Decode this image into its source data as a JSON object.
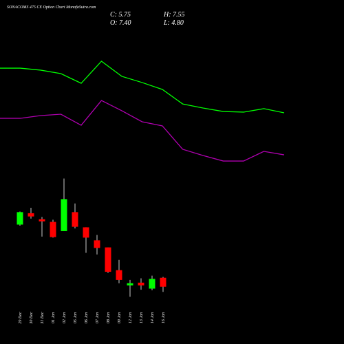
{
  "chart_data": [
    {
      "type": "candlestick",
      "title": "SONACOMS 475 CE Option Chart MunafaSutra.com",
      "ohlc_labels": [
        "C: 5.75",
        "H: 7.55",
        "O: 7.40",
        "L: 4.80"
      ],
      "categories": [
        "29 Dec",
        "30 Dec",
        "31 Dec",
        "01 Jan",
        "02 Jan",
        "05 Jan",
        "06 Jan",
        "07 Jan",
        "08 Jan",
        "09 Jan",
        "12 Jan",
        "13 Jan",
        "14 Jan",
        "16 Jan"
      ],
      "open": [
        17.2,
        19.3,
        18.2,
        17.7,
        16.0,
        19.5,
        16.7,
        14.3,
        13.0,
        8.8,
        6.0,
        6.5,
        5.4,
        7.4
      ],
      "high": [
        19.6,
        20.3,
        18.6,
        18.1,
        25.7,
        21.1,
        16.7,
        15.3,
        13.0,
        10.7,
        7.0,
        7.3,
        7.8,
        7.55
      ],
      "low": [
        17.0,
        18.3,
        15.0,
        14.8,
        16.0,
        16.5,
        12.0,
        11.7,
        8.3,
        6.4,
        3.9,
        5.2,
        5.1,
        4.8
      ],
      "close": [
        19.5,
        18.7,
        17.8,
        14.9,
        21.9,
        16.8,
        14.8,
        12.9,
        8.5,
        7.0,
        6.4,
        6.0,
        7.2,
        5.75
      ],
      "up_color": "#00ff00",
      "down_color": "#ff0000",
      "wick_color": "#cccccc",
      "ylim": [
        2.8,
        26.9
      ]
    },
    {
      "type": "line",
      "categories": [
        null,
        null,
        null,
        null,
        null,
        null,
        null,
        null,
        null,
        null,
        null,
        null,
        null,
        null,
        null
      ],
      "series": [
        {
          "color": "#00ff00",
          "values": [
            78.3,
            78.3,
            76.7,
            73.9,
            66.1,
            83.9,
            71.7,
            66.7,
            61.1,
            49.4,
            46.1,
            43.3,
            42.8,
            45.6,
            42.2
          ]
        },
        {
          "color": "#b000b0",
          "values": [
            37.8,
            37.8,
            40.0,
            41.1,
            32.2,
            52.2,
            43.9,
            35.0,
            31.7,
            12.8,
            7.8,
            3.3,
            3.3,
            11.1,
            8.3
          ]
        }
      ],
      "ylim": [
        0,
        100
      ]
    }
  ]
}
